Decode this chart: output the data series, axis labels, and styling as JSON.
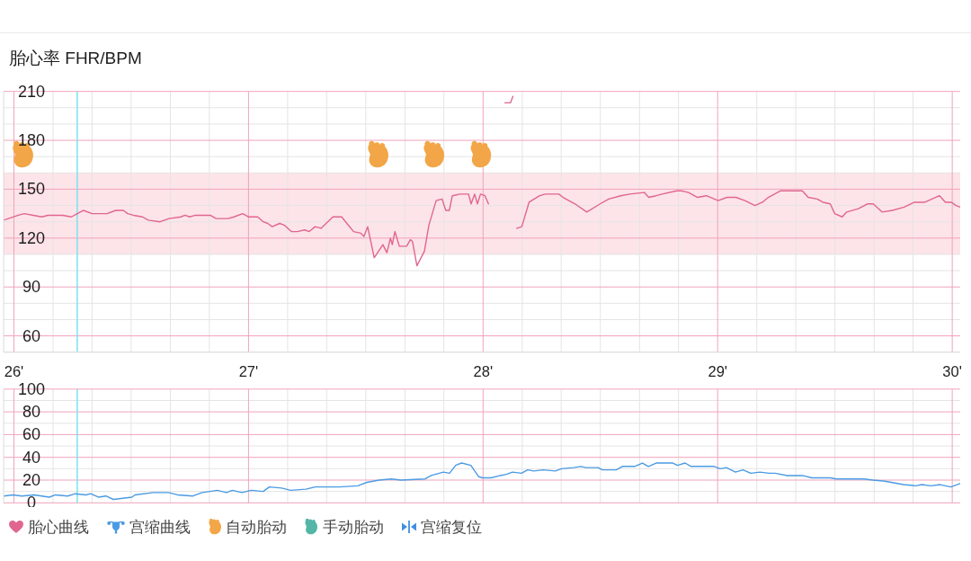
{
  "chart_data": [
    {
      "type": "line",
      "title": "胎心率 FHR/BPM",
      "xlim": [
        25.956,
        30.034
      ],
      "xticks": [
        {
          "value": 26,
          "label": "26'"
        },
        {
          "value": 26.167,
          "label": null
        },
        {
          "value": 26.333,
          "label": null
        },
        {
          "value": 26.5,
          "label": null
        },
        {
          "value": 26.667,
          "label": null
        },
        {
          "value": 26.833,
          "label": null
        },
        {
          "value": 27,
          "label": "27'"
        },
        {
          "value": 27.167,
          "label": null
        },
        {
          "value": 27.333,
          "label": null
        },
        {
          "value": 27.5,
          "label": null
        },
        {
          "value": 27.667,
          "label": null
        },
        {
          "value": 27.833,
          "label": null
        },
        {
          "value": 28,
          "label": "28'"
        },
        {
          "value": 28.167,
          "label": null
        },
        {
          "value": 28.333,
          "label": null
        },
        {
          "value": 28.5,
          "label": null
        },
        {
          "value": 28.667,
          "label": null
        },
        {
          "value": 28.833,
          "label": null
        },
        {
          "value": 29,
          "label": "29'"
        },
        {
          "value": 29.167,
          "label": null
        },
        {
          "value": 29.333,
          "label": null
        },
        {
          "value": 29.5,
          "label": null
        },
        {
          "value": 29.667,
          "label": null
        },
        {
          "value": 29.833,
          "label": null
        },
        {
          "value": 30,
          "label": "30'"
        }
      ],
      "ylim": [
        50,
        210
      ],
      "yticks": [
        {
          "value": 50,
          "label": null
        },
        60,
        {
          "value": 70,
          "label": null
        },
        {
          "value": 80,
          "label": null
        },
        90,
        {
          "value": 100,
          "label": null
        },
        {
          "value": 110,
          "label": null
        },
        120,
        {
          "value": 130,
          "label": null
        },
        {
          "value": 140,
          "label": null
        },
        150,
        {
          "value": 160,
          "label": null
        },
        {
          "value": 170,
          "label": null
        },
        180,
        {
          "value": 190,
          "label": null
        },
        {
          "value": 200,
          "label": null
        },
        210
      ],
      "grid": true,
      "legend": "bottom",
      "bands": [
        {
          "axis": "y",
          "from": 110,
          "to": 160,
          "color": "#fde4e9"
        }
      ],
      "ref_lines": [
        {
          "axis": "x",
          "value": 26.27,
          "color": "#7ae3ee"
        }
      ],
      "series": [
        {
          "name": "胎心曲线",
          "color": "#e0668f",
          "x": [
            25.956,
            26.019,
            26.044,
            26.082,
            26.119,
            26.145,
            26.208,
            26.245,
            26.27,
            26.296,
            26.333,
            26.397,
            26.434,
            26.466,
            26.485,
            26.51,
            26.548,
            26.573,
            26.623,
            26.661,
            26.711,
            26.73,
            26.749,
            26.774,
            26.812,
            26.837,
            26.862,
            26.912,
            26.938,
            26.975,
            27.001,
            27.039,
            27.063,
            27.082,
            27.101,
            27.133,
            27.152,
            27.183,
            27.208,
            27.24,
            27.259,
            27.284,
            27.309,
            27.36,
            27.397,
            27.448,
            27.479,
            27.492,
            27.508,
            27.536,
            27.573,
            27.59,
            27.605,
            27.613,
            27.624,
            27.643,
            27.674,
            27.69,
            27.699,
            27.718,
            27.75,
            27.769,
            27.8,
            27.825,
            27.841,
            27.856,
            27.869,
            27.901,
            27.938,
            27.949,
            27.964,
            27.976,
            27.989,
            28.008,
            28.023,
            28.05,
            28.093,
            28.108,
            28.117,
            28.127,
            28.135,
            28.144,
            28.165,
            28.196,
            28.241,
            28.266,
            28.297,
            28.323,
            28.341,
            28.392,
            28.442,
            28.499,
            28.536,
            28.587,
            28.625,
            28.687,
            28.706,
            28.738,
            28.763,
            28.826,
            28.845,
            28.876,
            28.914,
            28.952,
            29.002,
            29.04,
            29.078,
            29.116,
            29.159,
            29.191,
            29.216,
            29.267,
            29.298,
            29.361,
            29.386,
            29.424,
            29.449,
            29.48,
            29.499,
            29.531,
            29.55,
            29.6,
            29.638,
            29.663,
            29.701,
            29.745,
            29.795,
            29.839,
            29.883,
            29.946,
            29.971,
            29.997,
            30.016,
            30.034
          ],
          "values": [
            131,
            134,
            135,
            134,
            133,
            134,
            134,
            133,
            135,
            137,
            135,
            135,
            137,
            137,
            135,
            134,
            133,
            131,
            130,
            132,
            133,
            134,
            133,
            134,
            134,
            134,
            132,
            132,
            133,
            135,
            133,
            133,
            130,
            129,
            127,
            129,
            128,
            124,
            124,
            125,
            124,
            127,
            126,
            133,
            133,
            124,
            123,
            121,
            127,
            108,
            116,
            111,
            120,
            116,
            124,
            115,
            115,
            119,
            118,
            103,
            112,
            128,
            143,
            144,
            137,
            137,
            146,
            147,
            147,
            141,
            147,
            141,
            147,
            146,
            141,
            null,
            203,
            203,
            203,
            207,
            null,
            126,
            127,
            142,
            146,
            147,
            147,
            147,
            145,
            141,
            136,
            141,
            144,
            146,
            147,
            148,
            145,
            146,
            147,
            149,
            149,
            148,
            145,
            146,
            143,
            145,
            145,
            143,
            140,
            142,
            145,
            149,
            149,
            149,
            145,
            144,
            142,
            141,
            135,
            133,
            136,
            138,
            141,
            141,
            136,
            137,
            139,
            142,
            142,
            146,
            142,
            142,
            140,
            139
          ]
        },
        {
          "name": "自动胎动",
          "type": "scatter",
          "color": "#f2a647",
          "x": [
            26.039,
            27.553,
            27.791,
            27.991
          ],
          "values": [
            171,
            171,
            171,
            171
          ]
        },
        {
          "name": "手动胎动",
          "type": "scatter",
          "color": "#55b5a6"
        }
      ]
    },
    {
      "type": "line",
      "xlim": [
        25.956,
        30.034
      ],
      "xticks": [
        26,
        {
          "value": 26.167,
          "label": null
        },
        {
          "value": 26.333,
          "label": null
        },
        {
          "value": 26.5,
          "label": null
        },
        {
          "value": 26.667,
          "label": null
        },
        {
          "value": 26.833,
          "label": null
        },
        27,
        {
          "value": 27.167,
          "label": null
        },
        {
          "value": 27.333,
          "label": null
        },
        {
          "value": 27.5,
          "label": null
        },
        {
          "value": 27.667,
          "label": null
        },
        {
          "value": 27.833,
          "label": null
        },
        28,
        {
          "value": 28.167,
          "label": null
        },
        {
          "value": 28.333,
          "label": null
        },
        {
          "value": 28.5,
          "label": null
        },
        {
          "value": 28.667,
          "label": null
        },
        {
          "value": 28.833,
          "label": null
        },
        29,
        {
          "value": 29.167,
          "label": null
        },
        {
          "value": 29.333,
          "label": null
        },
        {
          "value": 29.5,
          "label": null
        },
        {
          "value": 29.667,
          "label": null
        },
        {
          "value": 29.833,
          "label": null
        },
        30
      ],
      "ylim": [
        0,
        100
      ],
      "yticks": [
        0,
        {
          "value": 10,
          "label": null
        },
        20,
        {
          "value": 30,
          "label": null
        },
        40,
        {
          "value": 50,
          "label": null
        },
        60,
        {
          "value": 70,
          "label": null
        },
        80,
        {
          "value": 90,
          "label": null
        },
        100
      ],
      "tick_labels": "y",
      "grid": true,
      "legend": "bottom",
      "ref_lines": [
        {
          "axis": "x",
          "value": 26.27,
          "color": "#7ae3ee"
        }
      ],
      "series": [
        {
          "name": "宫缩曲线",
          "color": "#4b9be3",
          "x": [
            25.956,
            25.995,
            26.034,
            26.086,
            26.151,
            26.177,
            26.229,
            26.262,
            26.307,
            26.327,
            26.36,
            26.392,
            26.424,
            26.503,
            26.516,
            26.594,
            26.659,
            26.698,
            26.763,
            26.802,
            26.867,
            26.906,
            26.932,
            26.972,
            27.011,
            27.063,
            27.089,
            27.141,
            27.18,
            27.245,
            27.284,
            27.388,
            27.466,
            27.505,
            27.557,
            27.61,
            27.649,
            27.753,
            27.779,
            27.831,
            27.857,
            27.883,
            27.909,
            27.948,
            27.981,
            27.998,
            28.034,
            28.073,
            28.099,
            28.125,
            28.164,
            28.19,
            28.216,
            28.256,
            28.308,
            28.334,
            28.386,
            28.418,
            28.438,
            28.49,
            28.509,
            28.568,
            28.594,
            28.646,
            28.679,
            28.705,
            28.738,
            28.776,
            28.809,
            28.829,
            28.861,
            28.887,
            28.985,
            29.011,
            29.037,
            29.076,
            29.108,
            29.141,
            29.18,
            29.219,
            29.245,
            29.297,
            29.362,
            29.401,
            29.441,
            29.48,
            29.506,
            29.623,
            29.662,
            29.714,
            29.792,
            29.844,
            29.871,
            29.909,
            29.948,
            29.994,
            30.034
          ],
          "values": [
            6,
            7,
            6,
            7,
            5,
            7,
            6,
            8,
            7,
            8,
            5,
            6,
            3,
            5,
            7,
            9,
            9,
            7,
            6,
            9,
            11,
            9,
            11,
            9,
            11,
            10,
            14,
            13,
            11,
            12,
            14,
            14,
            15,
            18,
            20,
            21,
            20,
            21,
            24,
            27,
            26,
            33,
            35,
            33,
            23,
            22,
            22,
            24,
            25,
            27,
            26,
            29,
            28,
            29,
            28,
            30,
            31,
            32,
            31,
            31,
            29,
            29,
            32,
            32,
            35,
            32,
            35,
            35,
            35,
            33,
            35,
            32,
            32,
            30,
            31,
            27,
            29,
            26,
            27,
            26,
            26,
            24,
            24,
            22,
            22,
            22,
            21,
            21,
            20,
            19,
            16,
            15,
            16,
            15,
            16,
            14,
            17
          ]
        },
        {
          "name": "宫缩复位",
          "type": "scatter",
          "color": "#3f8fe3"
        }
      ]
    }
  ]
}
